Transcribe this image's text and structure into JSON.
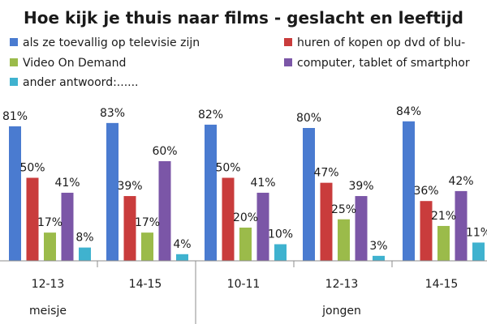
{
  "chart_data": {
    "type": "bar",
    "title": "Hoe kijk je thuis naar films - geslacht en leeftijd",
    "categories": [
      "12-13",
      "14-15",
      "10-11",
      "12-13",
      "14-15"
    ],
    "groups": [
      {
        "label": "meisje",
        "categories": [
          "12-13",
          "14-15"
        ]
      },
      {
        "label": "jongen",
        "categories": [
          "10-11",
          "12-13",
          "14-15"
        ]
      }
    ],
    "series": [
      {
        "name": "als ze toevallig op televisie zijn",
        "color": "#4a7bd0",
        "values": [
          81,
          83,
          82,
          80,
          84
        ],
        "labels": [
          "81%",
          "83%",
          "82%",
          "80%",
          "84%"
        ]
      },
      {
        "name": "huren of  kopen op dvd of blu-",
        "color": "#c93c3c",
        "values": [
          50,
          39,
          50,
          47,
          36
        ],
        "labels": [
          "50%",
          "39%",
          "50%",
          "47%",
          "36%"
        ]
      },
      {
        "name": "Video On Demand",
        "color": "#9bbb4a",
        "values": [
          17,
          17,
          20,
          25,
          21
        ],
        "labels": [
          "17%",
          "17%",
          "20%",
          "25%",
          "21%"
        ]
      },
      {
        "name": "computer, tablet of smartphor",
        "color": "#7b56a7",
        "values": [
          41,
          60,
          41,
          39,
          42
        ],
        "labels": [
          "41%",
          "60%",
          "41%",
          "39%",
          "42%"
        ]
      },
      {
        "name": "ander antwoord:......",
        "color": "#3fb2cf",
        "values": [
          8,
          4,
          10,
          3,
          11
        ],
        "labels": [
          "8%",
          "4%",
          "10%",
          "3%",
          "11%"
        ]
      }
    ],
    "ylim": [
      0,
      100
    ],
    "grid": false,
    "legend_position": "top"
  }
}
